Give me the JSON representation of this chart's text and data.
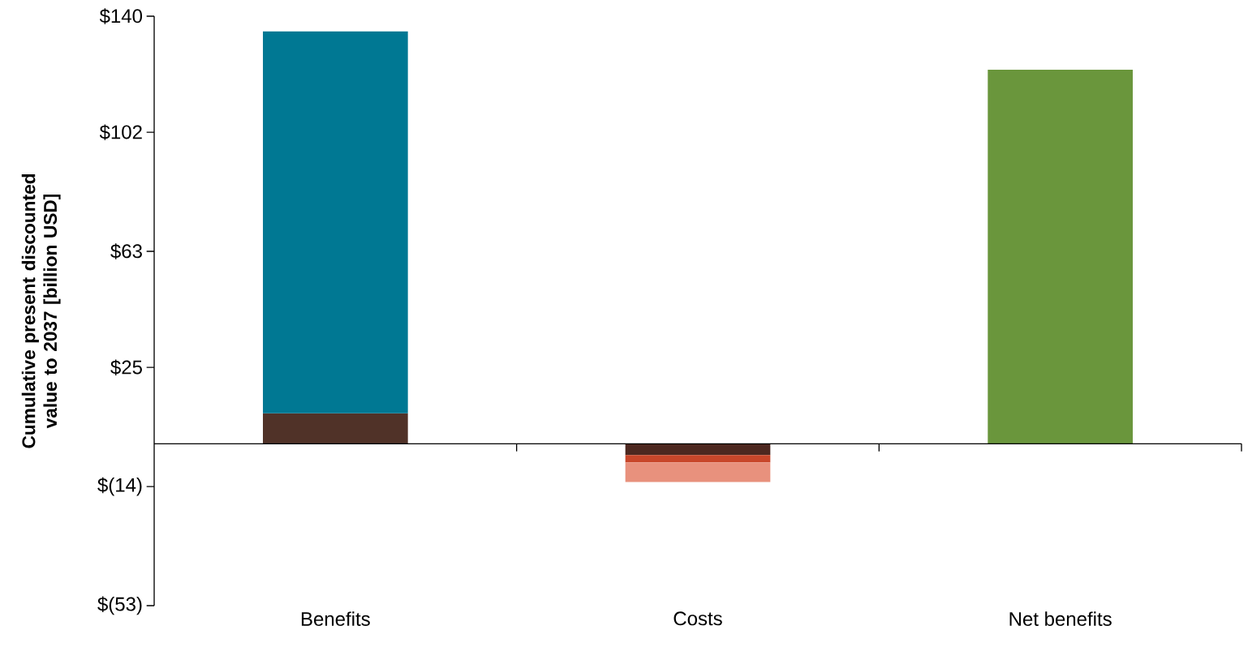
{
  "chart_data": {
    "type": "bar",
    "stacked": true,
    "ylabel": "Cumulative present discounted value to 2037 [billion USD]",
    "categories": [
      "Benefits",
      "Costs",
      "Net benefits"
    ],
    "series": [
      {
        "color": "#503228",
        "values": [
          10,
          null,
          null
        ]
      },
      {
        "color": "#007893",
        "values": [
          125,
          null,
          null
        ]
      },
      {
        "color": "#4d2820",
        "values": [
          null,
          -3.7,
          null
        ]
      },
      {
        "color": "#c8462a",
        "values": [
          null,
          -2.4,
          null
        ]
      },
      {
        "color": "#e8917d",
        "values": [
          null,
          -6.4,
          null
        ]
      },
      {
        "color": "#6a963c",
        "values": [
          null,
          null,
          122.5
        ]
      }
    ],
    "ylim": [
      -53,
      140
    ],
    "yticks": [
      {
        "value": 140,
        "label": "$140"
      },
      {
        "value": 102,
        "label": "$102"
      },
      {
        "value": 63,
        "label": "$63"
      },
      {
        "value": 25,
        "label": "$25"
      },
      {
        "value": -14,
        "label": "$(14)"
      },
      {
        "value": -53,
        "label": "$(53)"
      }
    ]
  }
}
